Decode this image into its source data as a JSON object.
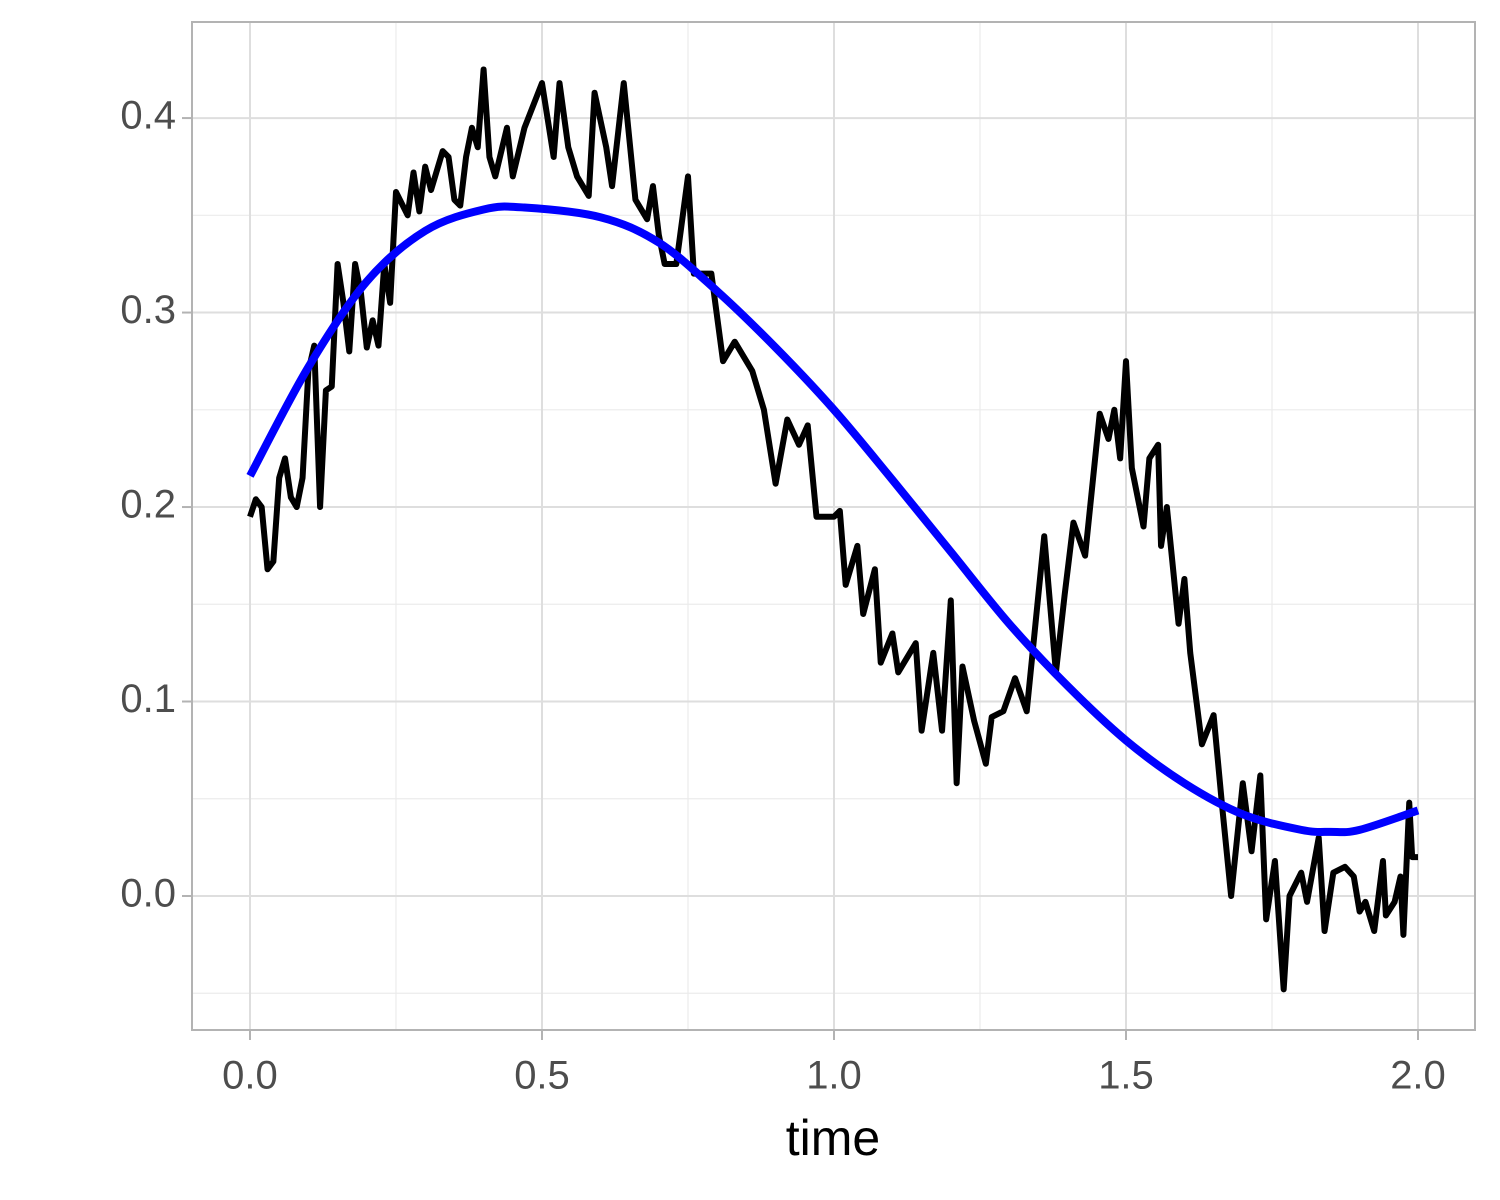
{
  "chart_data": {
    "type": "line",
    "x_label": "time",
    "xlim": [
      -0.0993,
      2.0976
    ],
    "ylim": [
      -0.0689,
      0.4494
    ],
    "xticks": [
      {
        "value": 0,
        "label": "0.0"
      },
      0.5,
      {
        "value": 1,
        "label": "1.0"
      },
      1.5,
      {
        "value": 2,
        "label": "2.0"
      }
    ],
    "yticks": [
      {
        "value": 0,
        "label": "0.0"
      },
      0.1,
      0.2,
      0.3,
      0.4
    ],
    "xminor": [
      0.25,
      0.75,
      1.25,
      1.75
    ],
    "yminor": [
      -0.05,
      0.05,
      0.15,
      0.25,
      0.35
    ],
    "grid": true,
    "series": [
      {
        "color": "#000000",
        "smooth": false,
        "x": [
          0,
          0.01,
          0.02,
          0.03,
          0.04,
          0.05,
          0.06,
          0.07,
          0.08,
          0.09,
          0.1,
          0.11,
          0.12,
          0.13,
          0.14,
          0.15,
          0.16,
          0.17,
          0.18,
          0.19,
          0.2,
          0.21,
          0.22,
          0.23,
          0.24,
          0.25,
          0.27,
          0.28,
          0.29,
          0.3,
          0.31,
          0.33,
          0.34,
          0.35,
          0.36,
          0.37,
          0.38,
          0.39,
          0.4,
          0.41,
          0.42,
          0.44,
          0.45,
          0.47,
          0.5,
          0.52,
          0.53,
          0.545,
          0.56,
          0.58,
          0.59,
          0.61,
          0.62,
          0.64,
          0.66,
          0.68,
          0.69,
          0.7,
          0.71,
          0.73,
          0.75,
          0.76,
          0.79,
          0.81,
          0.83,
          0.86,
          0.88,
          0.9,
          0.92,
          0.94,
          0.955,
          0.97,
          1.0,
          1.01,
          1.02,
          1.04,
          1.05,
          1.07,
          1.08,
          1.1,
          1.11,
          1.14,
          1.15,
          1.17,
          1.185,
          1.2,
          1.21,
          1.22,
          1.24,
          1.26,
          1.27,
          1.29,
          1.31,
          1.33,
          1.345,
          1.36,
          1.38,
          1.395,
          1.41,
          1.43,
          1.455,
          1.47,
          1.48,
          1.49,
          1.5,
          1.51,
          1.53,
          1.54,
          1.555,
          1.56,
          1.57,
          1.59,
          1.6,
          1.61,
          1.63,
          1.65,
          1.665,
          1.68,
          1.7,
          1.715,
          1.73,
          1.74,
          1.755,
          1.77,
          1.78,
          1.8,
          1.81,
          1.83,
          1.84,
          1.855,
          1.875,
          1.89,
          1.9,
          1.91,
          1.925,
          1.94,
          1.945,
          1.96,
          1.97,
          1.975,
          1.985,
          1.99,
          2.0
        ],
        "values": [
          0.195,
          0.204,
          0.2,
          0.168,
          0.172,
          0.215,
          0.225,
          0.205,
          0.2,
          0.215,
          0.27,
          0.283,
          0.2,
          0.26,
          0.262,
          0.325,
          0.305,
          0.28,
          0.325,
          0.31,
          0.282,
          0.296,
          0.283,
          0.325,
          0.305,
          0.362,
          0.35,
          0.372,
          0.352,
          0.375,
          0.363,
          0.383,
          0.38,
          0.358,
          0.355,
          0.38,
          0.395,
          0.385,
          0.425,
          0.38,
          0.37,
          0.395,
          0.37,
          0.395,
          0.418,
          0.38,
          0.418,
          0.385,
          0.37,
          0.36,
          0.413,
          0.385,
          0.365,
          0.418,
          0.358,
          0.348,
          0.365,
          0.34,
          0.325,
          0.325,
          0.37,
          0.32,
          0.32,
          0.275,
          0.285,
          0.27,
          0.25,
          0.212,
          0.245,
          0.232,
          0.242,
          0.195,
          0.195,
          0.198,
          0.16,
          0.18,
          0.145,
          0.168,
          0.12,
          0.135,
          0.115,
          0.13,
          0.085,
          0.125,
          0.085,
          0.152,
          0.058,
          0.118,
          0.09,
          0.068,
          0.092,
          0.095,
          0.112,
          0.095,
          0.14,
          0.185,
          0.115,
          0.155,
          0.192,
          0.175,
          0.248,
          0.235,
          0.25,
          0.225,
          0.275,
          0.22,
          0.19,
          0.225,
          0.232,
          0.18,
          0.2,
          0.14,
          0.163,
          0.125,
          0.078,
          0.093,
          0.045,
          0.0,
          0.058,
          0.023,
          0.062,
          -0.012,
          0.018,
          -0.048,
          0.0,
          0.012,
          -0.003,
          0.03,
          -0.018,
          0.012,
          0.015,
          0.01,
          -0.008,
          -0.003,
          -0.018,
          0.018,
          -0.01,
          -0.003,
          0.01,
          -0.02,
          0.048,
          0.02,
          0.02
        ]
      },
      {
        "color": "#0000ff",
        "smooth": true,
        "x": [
          0,
          0.1,
          0.2,
          0.3,
          0.4,
          0.47,
          0.6,
          0.7,
          0.8,
          0.9,
          1.0,
          1.1,
          1.2,
          1.3,
          1.4,
          1.5,
          1.6,
          1.7,
          1.8,
          1.85,
          1.9,
          2.0
        ],
        "values": [
          0.216,
          0.272,
          0.316,
          0.342,
          0.353,
          0.354,
          0.349,
          0.336,
          0.311,
          0.282,
          0.25,
          0.214,
          0.177,
          0.14,
          0.108,
          0.08,
          0.058,
          0.042,
          0.034,
          0.033,
          0.034,
          0.044
        ]
      }
    ]
  }
}
